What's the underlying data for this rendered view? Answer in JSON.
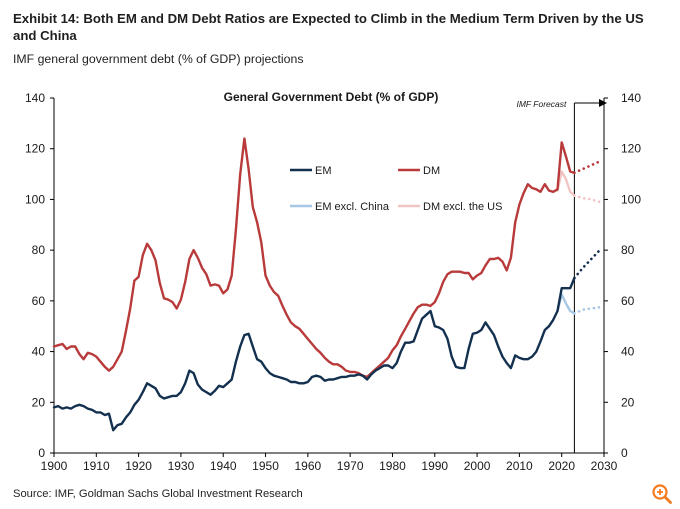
{
  "header": {
    "title": "Exhibit 14: Both EM and DM Debt Ratios are Expected to Climb in the Medium Term Driven by the US and China",
    "subtitle": "IMF general government debt (% of GDP) projections"
  },
  "footer": {
    "source": "Source: IMF, Goldman Sachs Global Investment Research"
  },
  "icons": {
    "zoom": "zoom-in-icon"
  },
  "colors": {
    "em": "#14304f",
    "dm": "#b93a3a",
    "em_ex_china": "#a6c8e6",
    "dm_ex_us": "#f2c4c4",
    "accent": "#f47c20"
  },
  "chart_data": {
    "type": "line",
    "title": "General Government Debt (% of GDP)",
    "annotation": "IMF Forecast",
    "forecast_start": 2023,
    "xlabel": "",
    "ylabel": "",
    "xlim": [
      1900,
      2030
    ],
    "ylim": [
      0,
      140
    ],
    "x_ticks": [
      1900,
      1910,
      1920,
      1930,
      1940,
      1950,
      1960,
      1970,
      1980,
      1990,
      2000,
      2010,
      2020,
      2030
    ],
    "y_ticks": [
      0,
      20,
      40,
      60,
      80,
      100,
      120,
      140
    ],
    "y_tick_labels_left": [
      "0",
      "20",
      "40",
      "60",
      "80",
      "100",
      "120",
      "140"
    ],
    "y_tick_labels_right": [
      "0",
      "20",
      "40",
      "60",
      "80",
      "100",
      "120",
      "140"
    ],
    "x_tick_labels": [
      "1900",
      "1910",
      "1920",
      "1930",
      "1940",
      "1950",
      "1960",
      "1970",
      "1980",
      "1990",
      "2000",
      "2010",
      "2020",
      "2030"
    ],
    "legend": [
      {
        "name": "EM",
        "series": "em"
      },
      {
        "name": "DM",
        "series": "dm"
      },
      {
        "name": "EM excl. China",
        "series": "em_ex_china"
      },
      {
        "name": "DM excl. the US",
        "series": "dm_ex_us"
      }
    ],
    "series": [
      {
        "key": "em",
        "name": "EM",
        "points": [
          [
            1900,
            18
          ],
          [
            1901,
            18.5
          ],
          [
            1902,
            17.5
          ],
          [
            1903,
            18
          ],
          [
            1904,
            17.5
          ],
          [
            1905,
            18.5
          ],
          [
            1906,
            19
          ],
          [
            1907,
            18.5
          ],
          [
            1908,
            17.5
          ],
          [
            1909,
            17
          ],
          [
            1910,
            16
          ],
          [
            1911,
            16
          ],
          [
            1912,
            15
          ],
          [
            1913,
            15.5
          ],
          [
            1914,
            9
          ],
          [
            1915,
            11
          ],
          [
            1916,
            11.5
          ],
          [
            1917,
            14
          ],
          [
            1918,
            16
          ],
          [
            1919,
            19
          ],
          [
            1920,
            21
          ],
          [
            1921,
            24
          ],
          [
            1922,
            27.5
          ],
          [
            1923,
            26.5
          ],
          [
            1924,
            25.5
          ],
          [
            1925,
            22.5
          ],
          [
            1926,
            21.5
          ],
          [
            1927,
            22
          ],
          [
            1928,
            22.5
          ],
          [
            1929,
            22.5
          ],
          [
            1930,
            24
          ],
          [
            1931,
            27.5
          ],
          [
            1932,
            32.5
          ],
          [
            1933,
            31.5
          ],
          [
            1934,
            27
          ],
          [
            1935,
            25
          ],
          [
            1936,
            24
          ],
          [
            1937,
            23
          ],
          [
            1938,
            24.5
          ],
          [
            1939,
            26.5
          ],
          [
            1940,
            26
          ],
          [
            1941,
            27.5
          ],
          [
            1942,
            29
          ],
          [
            1943,
            36
          ],
          [
            1944,
            42
          ],
          [
            1945,
            46.5
          ],
          [
            1946,
            47
          ],
          [
            1947,
            42
          ],
          [
            1948,
            37
          ],
          [
            1949,
            36
          ],
          [
            1950,
            33.5
          ],
          [
            1951,
            31.5
          ],
          [
            1952,
            30.5
          ],
          [
            1953,
            30
          ],
          [
            1954,
            29.5
          ],
          [
            1955,
            29
          ],
          [
            1956,
            28
          ],
          [
            1957,
            28
          ],
          [
            1958,
            27.5
          ],
          [
            1959,
            27.5
          ],
          [
            1960,
            28
          ],
          [
            1961,
            30
          ],
          [
            1962,
            30.5
          ],
          [
            1963,
            30
          ],
          [
            1964,
            28.5
          ],
          [
            1965,
            29
          ],
          [
            1966,
            29
          ],
          [
            1967,
            29.5
          ],
          [
            1968,
            30
          ],
          [
            1969,
            30
          ],
          [
            1970,
            30.5
          ],
          [
            1971,
            30.5
          ],
          [
            1972,
            31
          ],
          [
            1973,
            30.5
          ],
          [
            1974,
            29
          ],
          [
            1975,
            31
          ],
          [
            1976,
            32.5
          ],
          [
            1977,
            33.5
          ],
          [
            1978,
            34.5
          ],
          [
            1979,
            34.5
          ],
          [
            1980,
            33.5
          ],
          [
            1981,
            35.5
          ],
          [
            1982,
            40
          ],
          [
            1983,
            43.5
          ],
          [
            1984,
            43.5
          ],
          [
            1985,
            44
          ],
          [
            1986,
            48.5
          ],
          [
            1987,
            53
          ],
          [
            1988,
            54.5
          ],
          [
            1989,
            56
          ],
          [
            1990,
            50
          ],
          [
            1991,
            49.5
          ],
          [
            1992,
            48.5
          ],
          [
            1993,
            45
          ],
          [
            1994,
            38
          ],
          [
            1995,
            34
          ],
          [
            1996,
            33.5
          ],
          [
            1997,
            33.5
          ],
          [
            1998,
            41
          ],
          [
            1999,
            47
          ],
          [
            2000,
            47.5
          ],
          [
            2001,
            48.5
          ],
          [
            2002,
            51.5
          ],
          [
            2003,
            49
          ],
          [
            2004,
            46.5
          ],
          [
            2005,
            42
          ],
          [
            2006,
            38
          ],
          [
            2007,
            35.5
          ],
          [
            2008,
            33.5
          ],
          [
            2009,
            38.5
          ],
          [
            2010,
            37.5
          ],
          [
            2011,
            37
          ],
          [
            2012,
            37
          ],
          [
            2013,
            38
          ],
          [
            2014,
            40
          ],
          [
            2015,
            44
          ],
          [
            2016,
            48.5
          ],
          [
            2017,
            50
          ],
          [
            2018,
            52.5
          ],
          [
            2019,
            56
          ],
          [
            2020,
            65
          ],
          [
            2021,
            65
          ],
          [
            2022,
            65
          ],
          [
            2023,
            69
          ]
        ]
      },
      {
        "key": "em_forecast",
        "name": "EM",
        "style": "dotted",
        "points": [
          [
            2023,
            69
          ],
          [
            2025,
            73
          ],
          [
            2027,
            76.5
          ],
          [
            2029,
            80
          ]
        ]
      },
      {
        "key": "em_ex_china",
        "name": "EM excl. China",
        "points": [
          [
            2019,
            56
          ],
          [
            2020,
            62.5
          ],
          [
            2021,
            59
          ],
          [
            2022,
            56
          ],
          [
            2023,
            55
          ]
        ]
      },
      {
        "key": "em_ex_china_forecast",
        "name": "EM excl. China",
        "style": "dotted",
        "points": [
          [
            2023,
            55
          ],
          [
            2025,
            56.5
          ],
          [
            2027,
            57
          ],
          [
            2029,
            57.5
          ]
        ]
      },
      {
        "key": "dm",
        "name": "DM",
        "points": [
          [
            1900,
            42
          ],
          [
            1901,
            42.5
          ],
          [
            1902,
            43
          ],
          [
            1903,
            41
          ],
          [
            1904,
            42
          ],
          [
            1905,
            42
          ],
          [
            1906,
            39
          ],
          [
            1907,
            37
          ],
          [
            1908,
            39.5
          ],
          [
            1909,
            39
          ],
          [
            1910,
            38
          ],
          [
            1911,
            36
          ],
          [
            1912,
            34
          ],
          [
            1913,
            32.5
          ],
          [
            1914,
            34
          ],
          [
            1915,
            37
          ],
          [
            1916,
            40
          ],
          [
            1917,
            48
          ],
          [
            1918,
            57
          ],
          [
            1919,
            68
          ],
          [
            1920,
            69.5
          ],
          [
            1921,
            78
          ],
          [
            1922,
            82.5
          ],
          [
            1923,
            80
          ],
          [
            1924,
            76
          ],
          [
            1925,
            67
          ],
          [
            1926,
            61
          ],
          [
            1927,
            60.5
          ],
          [
            1928,
            59.5
          ],
          [
            1929,
            57
          ],
          [
            1930,
            60.5
          ],
          [
            1931,
            67.5
          ],
          [
            1932,
            76.5
          ],
          [
            1933,
            80
          ],
          [
            1934,
            77
          ],
          [
            1935,
            73
          ],
          [
            1936,
            70.5
          ],
          [
            1937,
            66
          ],
          [
            1938,
            66.5
          ],
          [
            1939,
            66
          ],
          [
            1940,
            63
          ],
          [
            1941,
            64.5
          ],
          [
            1942,
            70
          ],
          [
            1943,
            88
          ],
          [
            1944,
            110
          ],
          [
            1945,
            124
          ],
          [
            1946,
            112
          ],
          [
            1947,
            97
          ],
          [
            1948,
            91
          ],
          [
            1949,
            83
          ],
          [
            1950,
            70
          ],
          [
            1951,
            66
          ],
          [
            1952,
            63.5
          ],
          [
            1953,
            62
          ],
          [
            1954,
            58
          ],
          [
            1955,
            54.5
          ],
          [
            1956,
            51.5
          ],
          [
            1957,
            50
          ],
          [
            1958,
            49
          ],
          [
            1959,
            47
          ],
          [
            1960,
            45
          ],
          [
            1961,
            43
          ],
          [
            1962,
            41
          ],
          [
            1963,
            39.5
          ],
          [
            1964,
            37.5
          ],
          [
            1965,
            36
          ],
          [
            1966,
            35
          ],
          [
            1967,
            35
          ],
          [
            1968,
            34
          ],
          [
            1969,
            32.5
          ],
          [
            1970,
            32
          ],
          [
            1971,
            32
          ],
          [
            1972,
            31.5
          ],
          [
            1973,
            30.5
          ],
          [
            1974,
            30
          ],
          [
            1975,
            31.5
          ],
          [
            1976,
            33
          ],
          [
            1977,
            34.5
          ],
          [
            1978,
            36
          ],
          [
            1979,
            37.5
          ],
          [
            1980,
            40.5
          ],
          [
            1981,
            42.5
          ],
          [
            1982,
            46
          ],
          [
            1983,
            49
          ],
          [
            1984,
            52
          ],
          [
            1985,
            55
          ],
          [
            1986,
            57.5
          ],
          [
            1987,
            58.5
          ],
          [
            1988,
            58.5
          ],
          [
            1989,
            58
          ],
          [
            1990,
            59.5
          ],
          [
            1991,
            63
          ],
          [
            1992,
            67.5
          ],
          [
            1993,
            70.5
          ],
          [
            1994,
            71.5
          ],
          [
            1995,
            71.5
          ],
          [
            1996,
            71.5
          ],
          [
            1997,
            71
          ],
          [
            1998,
            71
          ],
          [
            1999,
            68.5
          ],
          [
            2000,
            70
          ],
          [
            2001,
            71
          ],
          [
            2002,
            74
          ],
          [
            2003,
            76.5
          ],
          [
            2004,
            76.5
          ],
          [
            2005,
            77
          ],
          [
            2006,
            75.5
          ],
          [
            2007,
            72
          ],
          [
            2008,
            77
          ],
          [
            2009,
            91
          ],
          [
            2010,
            98
          ],
          [
            2011,
            102.5
          ],
          [
            2012,
            106
          ],
          [
            2013,
            104.5
          ],
          [
            2014,
            104
          ],
          [
            2015,
            103
          ],
          [
            2016,
            106
          ],
          [
            2017,
            103.5
          ],
          [
            2018,
            103
          ],
          [
            2019,
            104
          ],
          [
            2020,
            122.5
          ],
          [
            2021,
            117
          ],
          [
            2022,
            111
          ],
          [
            2023,
            110.5
          ]
        ]
      },
      {
        "key": "dm_forecast",
        "name": "DM",
        "style": "dotted",
        "points": [
          [
            2023,
            110.5
          ],
          [
            2025,
            112
          ],
          [
            2027,
            113.5
          ],
          [
            2029,
            115
          ]
        ]
      },
      {
        "key": "dm_ex_us",
        "name": "DM excl. the US",
        "points": [
          [
            2019,
            103.5
          ],
          [
            2020,
            111
          ],
          [
            2021,
            108
          ],
          [
            2022,
            103
          ],
          [
            2023,
            101.5
          ]
        ]
      },
      {
        "key": "dm_ex_us_forecast",
        "name": "DM excl. the US",
        "style": "dotted",
        "points": [
          [
            2023,
            101.5
          ],
          [
            2025,
            100.5
          ],
          [
            2027,
            100
          ],
          [
            2029,
            99
          ]
        ]
      }
    ]
  }
}
